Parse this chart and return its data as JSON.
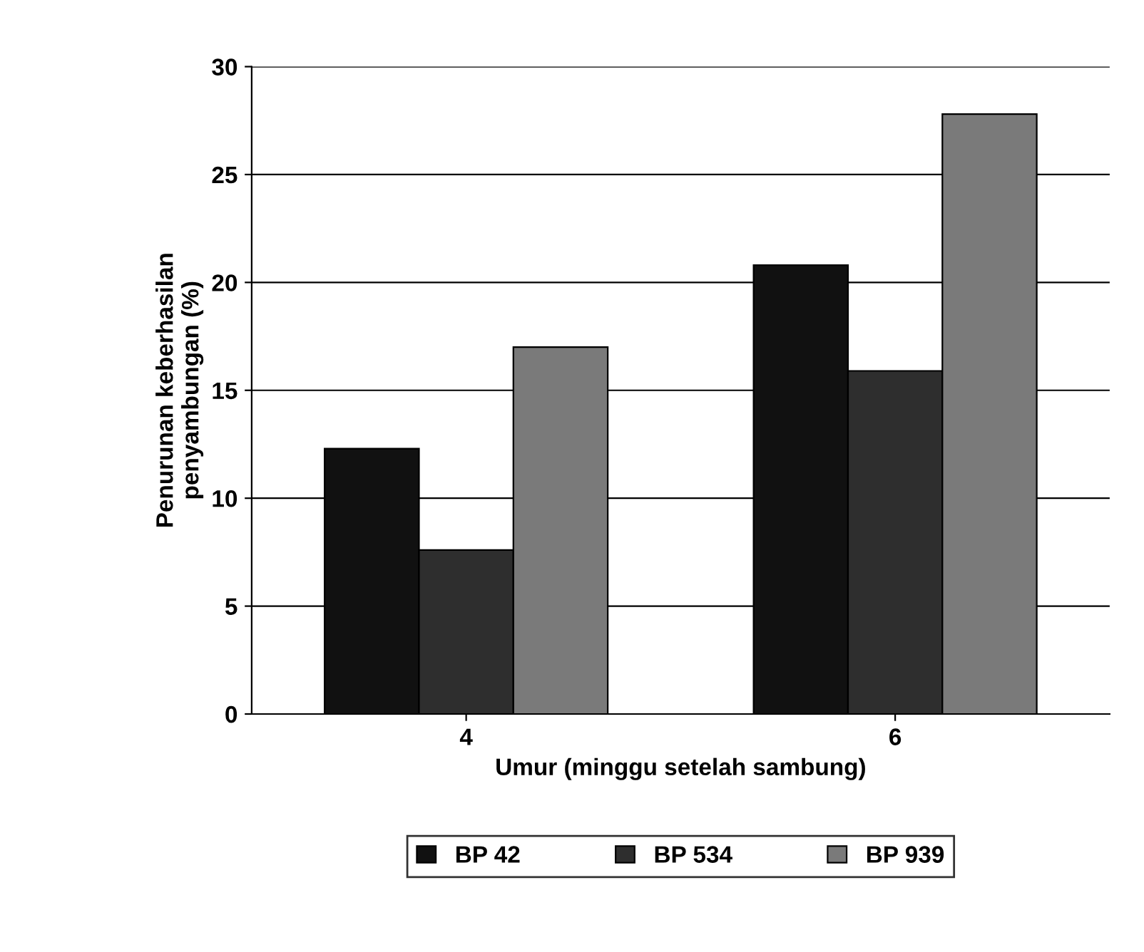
{
  "chart_data": {
    "type": "bar",
    "xlabel": "Umur (minggu setelah sambung)",
    "ylabel": "Penurunan keberhasilan\npenyambungan (%)",
    "categories": [
      "4",
      "6"
    ],
    "series": [
      {
        "name": "BP 42",
        "color": "#111111",
        "values": [
          12.3,
          20.8
        ]
      },
      {
        "name": "BP 534",
        "color": "#2e2e2e",
        "values": [
          7.6,
          15.9
        ]
      },
      {
        "name": "BP 939",
        "color": "#7a7a7a",
        "values": [
          17.0,
          27.8
        ]
      }
    ],
    "ylim": [
      0,
      30
    ],
    "yticks": [
      0,
      5,
      10,
      15,
      20,
      25,
      30
    ],
    "grid": "y",
    "legend": "bottom"
  }
}
